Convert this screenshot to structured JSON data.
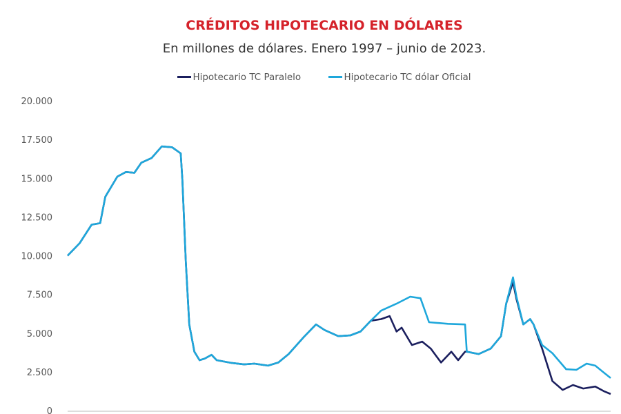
{
  "chart_data": {
    "type": "line",
    "title": "CRÉDITOS HIPOTECARIO EN DÓLARES",
    "subtitle": "En millones de dólares. Enero 1997 – junio de 2023.",
    "xlabel": "",
    "ylabel": "",
    "ylim": [
      0,
      20000
    ],
    "xlim": [
      "1997-01",
      "2023-06"
    ],
    "yticks": [
      "0",
      "2.500",
      "5.000",
      "7.500",
      "10.000",
      "12.500",
      "15.000",
      "17.500",
      "20.000"
    ],
    "grid": false,
    "legend_position": "top",
    "series": [
      {
        "name": "Hipotecario TC Paralelo",
        "color": "#1b1f5e",
        "points": [
          [
            "1997-01",
            10000
          ],
          [
            "1997-08",
            10800
          ],
          [
            "1998-03",
            12000
          ],
          [
            "1998-08",
            12100
          ],
          [
            "1998-11",
            13800
          ],
          [
            "1999-06",
            15100
          ],
          [
            "1999-11",
            15400
          ],
          [
            "2000-04",
            15350
          ],
          [
            "2000-08",
            16000
          ],
          [
            "2001-02",
            16300
          ],
          [
            "2001-08",
            17050
          ],
          [
            "2002-02",
            17000
          ],
          [
            "2002-07",
            16600
          ],
          [
            "2002-08",
            14900
          ],
          [
            "2002-10",
            9600
          ],
          [
            "2002-12",
            5560
          ],
          [
            "2003-03",
            3800
          ],
          [
            "2003-06",
            3250
          ],
          [
            "2003-09",
            3350
          ],
          [
            "2004-01",
            3600
          ],
          [
            "2004-04",
            3250
          ],
          [
            "2005-01",
            3070
          ],
          [
            "2005-08",
            2980
          ],
          [
            "2006-02",
            3030
          ],
          [
            "2006-10",
            2900
          ],
          [
            "2007-04",
            3100
          ],
          [
            "2007-10",
            3650
          ],
          [
            "2008-07",
            4760
          ],
          [
            "2009-02",
            5560
          ],
          [
            "2009-07",
            5200
          ],
          [
            "2010-03",
            4800
          ],
          [
            "2010-10",
            4850
          ],
          [
            "2011-04",
            5100
          ],
          [
            "2011-10",
            5800
          ],
          [
            "2012-04",
            5900
          ],
          [
            "2012-09",
            6100
          ],
          [
            "2013-01",
            5100
          ],
          [
            "2013-04",
            5350
          ],
          [
            "2013-10",
            4230
          ],
          [
            "2014-04",
            4450
          ],
          [
            "2014-09",
            4000
          ],
          [
            "2015-03",
            3100
          ],
          [
            "2015-09",
            3800
          ],
          [
            "2016-01",
            3250
          ],
          [
            "2016-05",
            3800
          ],
          [
            "2016-06",
            3800
          ],
          [
            "2017-01",
            3650
          ],
          [
            "2017-08",
            4000
          ],
          [
            "2018-02",
            4800
          ],
          [
            "2018-05",
            6900
          ],
          [
            "2018-09",
            8300
          ],
          [
            "2018-11",
            7200
          ],
          [
            "2019-03",
            5560
          ],
          [
            "2019-07",
            5900
          ],
          [
            "2019-09",
            5560
          ],
          [
            "2020-02",
            4000
          ],
          [
            "2020-08",
            1900
          ],
          [
            "2021-02",
            1330
          ],
          [
            "2021-08",
            1650
          ],
          [
            "2022-02",
            1420
          ],
          [
            "2022-09",
            1550
          ],
          [
            "2023-02",
            1250
          ],
          [
            "2023-06",
            1070
          ]
        ]
      },
      {
        "name": "Hipotecario TC dólar Oficial",
        "color": "#1ea7db",
        "points": [
          [
            "1997-01",
            10000
          ],
          [
            "1997-08",
            10800
          ],
          [
            "1998-03",
            12000
          ],
          [
            "1998-08",
            12100
          ],
          [
            "1998-11",
            13800
          ],
          [
            "1999-06",
            15100
          ],
          [
            "1999-11",
            15400
          ],
          [
            "2000-04",
            15350
          ],
          [
            "2000-08",
            16000
          ],
          [
            "2001-02",
            16300
          ],
          [
            "2001-08",
            17050
          ],
          [
            "2002-02",
            17000
          ],
          [
            "2002-07",
            16600
          ],
          [
            "2002-08",
            14900
          ],
          [
            "2002-10",
            9600
          ],
          [
            "2002-12",
            5560
          ],
          [
            "2003-03",
            3800
          ],
          [
            "2003-06",
            3250
          ],
          [
            "2003-09",
            3350
          ],
          [
            "2004-01",
            3600
          ],
          [
            "2004-04",
            3250
          ],
          [
            "2005-01",
            3070
          ],
          [
            "2005-08",
            2980
          ],
          [
            "2006-02",
            3030
          ],
          [
            "2006-10",
            2900
          ],
          [
            "2007-04",
            3100
          ],
          [
            "2007-10",
            3650
          ],
          [
            "2008-07",
            4760
          ],
          [
            "2009-02",
            5560
          ],
          [
            "2009-07",
            5200
          ],
          [
            "2010-03",
            4800
          ],
          [
            "2010-10",
            4850
          ],
          [
            "2011-04",
            5100
          ],
          [
            "2011-10",
            5800
          ],
          [
            "2012-04",
            6450
          ],
          [
            "2013-01",
            6900
          ],
          [
            "2013-09",
            7350
          ],
          [
            "2014-03",
            7250
          ],
          [
            "2014-08",
            5700
          ],
          [
            "2015-07",
            5600
          ],
          [
            "2016-05",
            5560
          ],
          [
            "2016-06",
            3800
          ],
          [
            "2017-01",
            3650
          ],
          [
            "2017-08",
            4000
          ],
          [
            "2018-02",
            4800
          ],
          [
            "2018-05",
            6900
          ],
          [
            "2018-09",
            8600
          ],
          [
            "2018-11",
            7350
          ],
          [
            "2019-03",
            5560
          ],
          [
            "2019-07",
            5900
          ],
          [
            "2019-09",
            5560
          ],
          [
            "2020-02",
            4230
          ],
          [
            "2020-08",
            3700
          ],
          [
            "2021-04",
            2670
          ],
          [
            "2021-10",
            2630
          ],
          [
            "2022-04",
            3030
          ],
          [
            "2022-09",
            2900
          ],
          [
            "2023-02",
            2450
          ],
          [
            "2023-06",
            2100
          ]
        ]
      }
    ]
  }
}
